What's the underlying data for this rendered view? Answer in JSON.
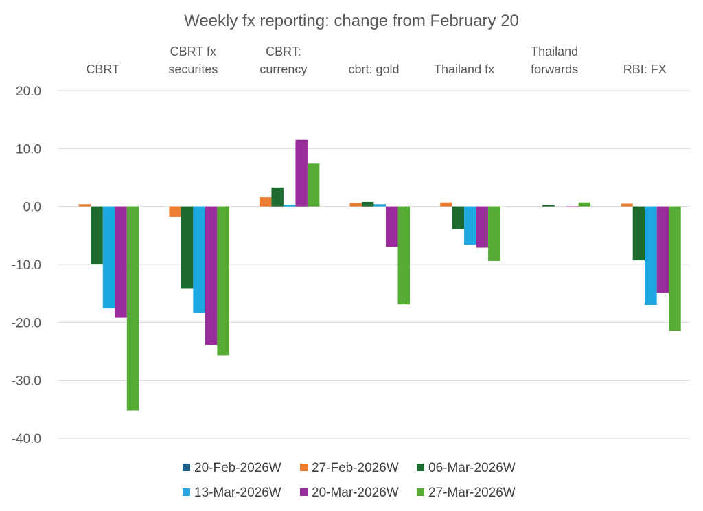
{
  "chart_data": {
    "type": "bar",
    "title": "Weekly fx reporting: change from February 20",
    "xlabel": "",
    "ylabel": "",
    "ylim": [
      -40,
      20
    ],
    "yticks": [
      "20.0",
      "10.0",
      "0.0",
      "-10.0",
      "-20.0",
      "-30.0",
      "-40.0"
    ],
    "ytick_values": [
      20,
      10,
      0,
      -10,
      -20,
      -30,
      -40
    ],
    "grid": true,
    "legend_position": "bottom",
    "categories": [
      [
        "CBRT"
      ],
      [
        "CBRT fx",
        "securites"
      ],
      [
        "CBRT:",
        "currency"
      ],
      [
        "cbrt: gold"
      ],
      [
        "Thailand fx"
      ],
      [
        "Thailand",
        "forwards"
      ],
      [
        "RBI: FX"
      ]
    ],
    "series": [
      {
        "name": "20-Feb-2026W",
        "color": "#1f5f8b",
        "values": [
          0,
          0,
          0,
          0,
          0,
          0,
          0
        ]
      },
      {
        "name": "27-Feb-2026W",
        "color": "#ed7d31",
        "values": [
          0.4,
          -1.8,
          1.6,
          0.6,
          0.7,
          0,
          0.5
        ]
      },
      {
        "name": "06-Mar-2026W",
        "color": "#1e6b30",
        "values": [
          -10.0,
          -14.2,
          3.3,
          0.8,
          -3.9,
          0.3,
          -9.3
        ]
      },
      {
        "name": "13-Mar-2026W",
        "color": "#1ea7e1",
        "values": [
          -17.6,
          -18.4,
          0.3,
          0.4,
          -6.6,
          0,
          -17.0
        ]
      },
      {
        "name": "20-Mar-2026W",
        "color": "#9b2c9b",
        "values": [
          -19.2,
          -23.9,
          11.5,
          -7.0,
          -7.1,
          -0.1,
          -14.9
        ]
      },
      {
        "name": "27-Mar-2026W",
        "color": "#56ab34",
        "values": [
          -35.2,
          -25.7,
          7.4,
          -16.9,
          -9.4,
          0.7,
          -21.5
        ]
      }
    ]
  }
}
